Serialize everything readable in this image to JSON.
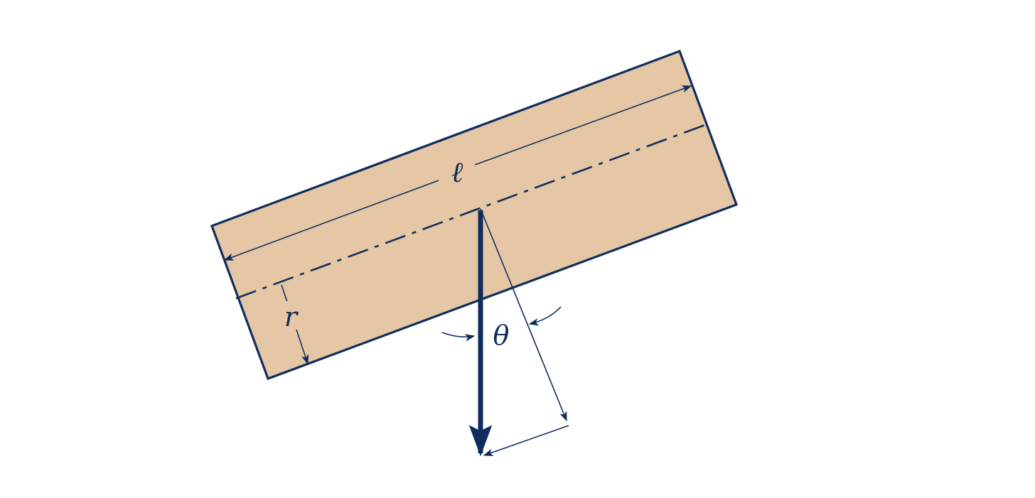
{
  "diagram": {
    "labels": {
      "length": "ℓ",
      "radius": "r",
      "angle": "θ"
    },
    "colors": {
      "fill": "#e6c7a5",
      "stroke": "#0f2d5c",
      "background": "#ffffff"
    },
    "line_styles": {
      "centerline": "dash-dot"
    }
  }
}
